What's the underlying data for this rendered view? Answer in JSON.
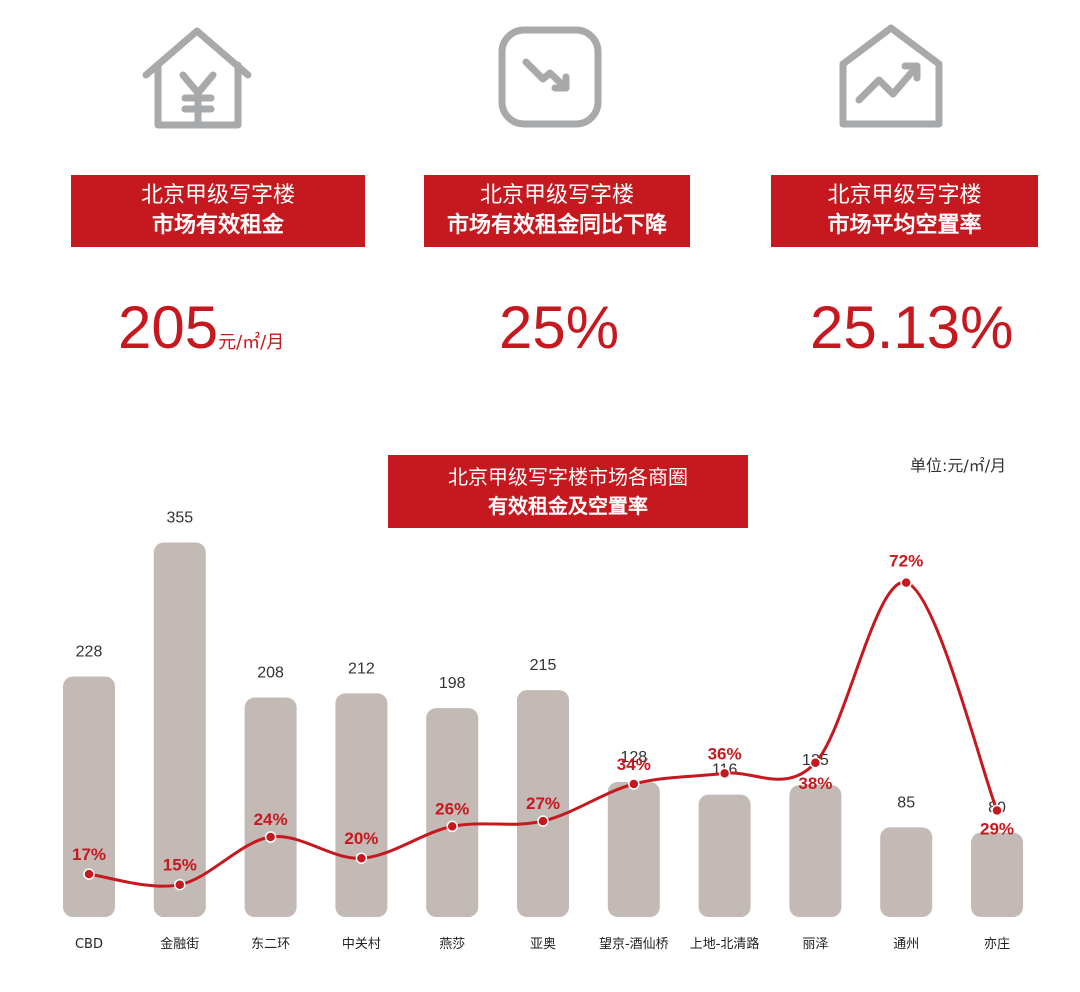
{
  "kpis": [
    {
      "icon": "house-yen-icon",
      "line1": "北京甲级写字楼",
      "line2": "市场有效租金",
      "value": "205",
      "unit": "元/㎡/月"
    },
    {
      "icon": "trend-down-icon",
      "line1": "北京甲级写字楼",
      "line2": "市场有效租金同比下降",
      "value": "25%",
      "unit": ""
    },
    {
      "icon": "house-trend-up-icon",
      "line1": "北京甲级写字楼",
      "line2": "市场平均空置率",
      "value": "25.13%",
      "unit": ""
    }
  ],
  "chart_header": {
    "line1": "北京甲级写字楼市场各商圈",
    "line2": "有效租金及空置率",
    "unit": "单位:元/㎡/月"
  },
  "colors": {
    "accent": "#c6191f",
    "bar": "#c3b9b5",
    "icon": "#a7a9ab"
  },
  "chart_data": {
    "type": "bar",
    "categories": [
      "CBD",
      "金融街",
      "东二环",
      "中关村",
      "燕莎",
      "亚奥",
      "望京-酒仙桥",
      "上地-北清路",
      "丽泽",
      "通州",
      "亦庄"
    ],
    "series": [
      {
        "values": [
          228,
          355,
          208,
          212,
          198,
          215,
          128,
          116,
          125,
          85,
          80
        ]
      },
      {
        "type": "line",
        "values": [
          17,
          15,
          24,
          20,
          26,
          27,
          34,
          36,
          38,
          72,
          29
        ],
        "labels": [
          "17%",
          "15%",
          "24%",
          "20%",
          "26%",
          "27%",
          "34%",
          "36%",
          "38%",
          "72%",
          "29%"
        ]
      }
    ],
    "title": "北京甲级写字楼市场各商圈 有效租金及空置率",
    "unit": "单位:元/㎡/月",
    "ylim": [
      0,
      355
    ],
    "grid": false
  }
}
